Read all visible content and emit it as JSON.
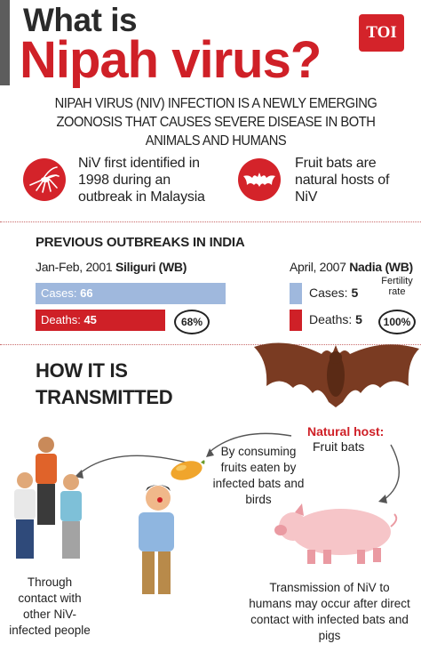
{
  "header": {
    "title_line1": "What is",
    "title_line2": "Nipah virus?",
    "badge": "TOI"
  },
  "intro": "NIPAH VIRUS (NIV) INFECTION IS A NEWLY EMERGING ZOONOSIS THAT CAUSES SEVERE DISEASE IN BOTH ANIMALS AND HUMANS",
  "facts": [
    {
      "icon": "mosquito-icon",
      "text": "NiV first identified in 1998 during an outbreak in Malaysia"
    },
    {
      "icon": "bat-icon",
      "text": "Fruit bats are natural hosts of NiV"
    }
  ],
  "outbreaks": {
    "title": "PREVIOUS OUTBREAKS IN INDIA",
    "siliguri": {
      "date": "Jan-Feb, 2001",
      "place": "Siliguri (WB)",
      "cases_label": "Cases:",
      "cases": "66",
      "deaths_label": "Deaths:",
      "deaths": "45",
      "fatality": "68%"
    },
    "nadia": {
      "date": "April, 2007",
      "place": "Nadia (WB)",
      "cases_label": "Cases:",
      "cases": "5",
      "deaths_label": "Deaths:",
      "deaths": "5",
      "fatality_label": "Fertility rate",
      "fatality": "100%"
    }
  },
  "transmission": {
    "title_line1": "HOW IT IS",
    "title_line2": "TRANSMITTED",
    "host_title": "Natural host:",
    "host_subtitle": "Fruit bats",
    "fruits": "By consuming fruits eaten by infected bats and birds",
    "contact_people": "Through contact with other NiV-infected people",
    "contact_animals": "Transmission of NiV to humans may occur after direct contact with infected bats and pigs"
  },
  "colors": {
    "accent_red": "#cf2027",
    "cases_blue": "#9fb8dd",
    "text_dark": "#222222"
  }
}
